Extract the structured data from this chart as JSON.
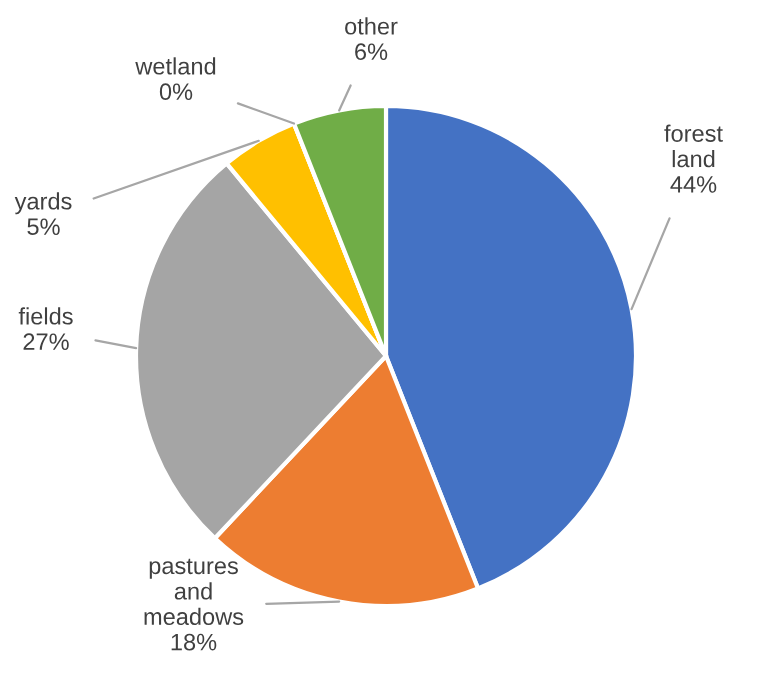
{
  "chart_data": {
    "type": "pie",
    "categories": [
      "forest land",
      "pastures and meadows",
      "fields",
      "yards",
      "wetland",
      "other"
    ],
    "values": [
      44,
      18,
      27,
      5,
      0,
      6
    ],
    "value_labels": [
      "44%",
      "18%",
      "27%",
      "5%",
      "0%",
      "6%"
    ],
    "colors": [
      "#4472c4",
      "#ed7d31",
      "#a5a5a5",
      "#ffc000",
      "#5b9bd5",
      "#70ad47"
    ],
    "legend": false
  }
}
